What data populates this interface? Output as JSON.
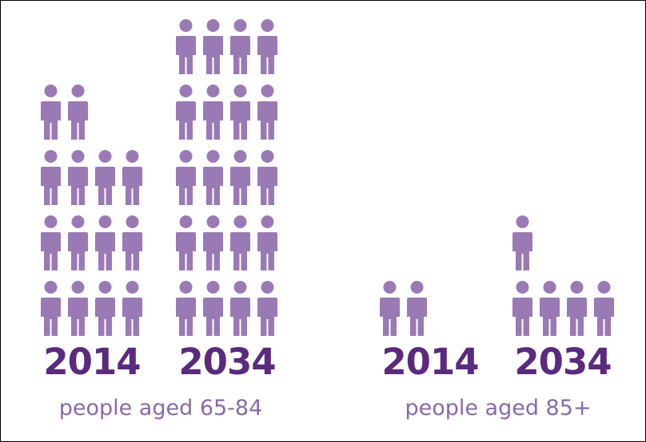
{
  "chart_data": [
    {
      "type": "pictogram",
      "caption": "people aged 65-84",
      "categories": [
        "2014",
        "2034"
      ],
      "values": [
        14,
        20
      ]
    },
    {
      "type": "pictogram",
      "caption": "people aged 85+",
      "categories": [
        "2014",
        "2034"
      ],
      "values": [
        2,
        5
      ]
    }
  ],
  "colors": {
    "icon": "#9a7ab4",
    "year_text": "#5a2a7e",
    "caption_text": "#8a6aa6"
  }
}
